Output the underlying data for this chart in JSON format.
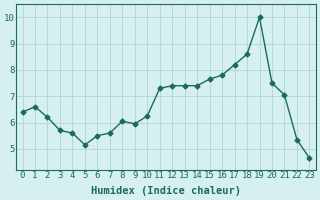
{
  "x": [
    0,
    1,
    2,
    3,
    4,
    5,
    6,
    7,
    8,
    9,
    10,
    11,
    12,
    13,
    14,
    15,
    16,
    17,
    18,
    19,
    20,
    21,
    22,
    23
  ],
  "y": [
    6.4,
    6.6,
    6.2,
    5.7,
    5.6,
    5.15,
    5.5,
    5.6,
    6.05,
    5.95,
    6.25,
    7.3,
    7.4,
    7.4,
    7.4,
    7.65,
    7.8,
    8.2,
    8.6,
    10.0,
    7.5,
    7.05,
    5.35,
    4.65
  ],
  "line_color": "#1a6b5a",
  "marker": "D",
  "markersize": 2.5,
  "linewidth": 1.0,
  "bg_color": "#d6f0f0",
  "grid_color": "#b8d8d8",
  "xlabel": "Humidex (Indice chaleur)",
  "ylim": [
    4.2,
    10.5
  ],
  "xlim": [
    -0.5,
    23.5
  ],
  "yticks": [
    5,
    6,
    7,
    8,
    9,
    10
  ],
  "xticks": [
    0,
    1,
    2,
    3,
    4,
    5,
    6,
    7,
    8,
    9,
    10,
    11,
    12,
    13,
    14,
    15,
    16,
    17,
    18,
    19,
    20,
    21,
    22,
    23
  ],
  "tick_fontsize": 6.5,
  "xlabel_fontsize": 7.5,
  "tick_color": "#1a6b5a",
  "spine_color": "#1a6b5a"
}
